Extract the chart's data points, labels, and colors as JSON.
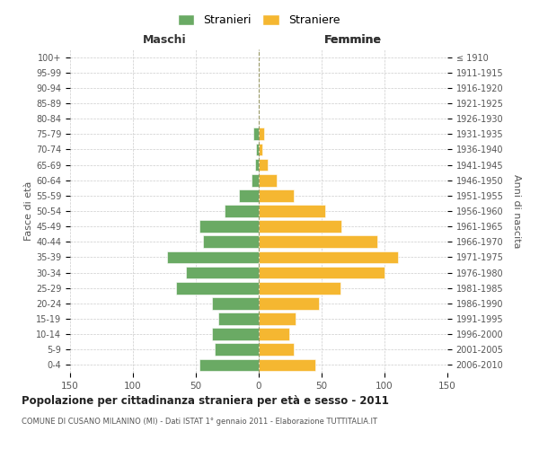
{
  "age_groups": [
    "0-4",
    "5-9",
    "10-14",
    "15-19",
    "20-24",
    "25-29",
    "30-34",
    "35-39",
    "40-44",
    "45-49",
    "50-54",
    "55-59",
    "60-64",
    "65-69",
    "70-74",
    "75-79",
    "80-84",
    "85-89",
    "90-94",
    "95-99",
    "100+"
  ],
  "birth_years": [
    "2006-2010",
    "2001-2005",
    "1996-2000",
    "1991-1995",
    "1986-1990",
    "1981-1985",
    "1976-1980",
    "1971-1975",
    "1966-1970",
    "1961-1965",
    "1956-1960",
    "1951-1955",
    "1946-1950",
    "1941-1945",
    "1936-1940",
    "1931-1935",
    "1926-1930",
    "1921-1925",
    "1916-1920",
    "1911-1915",
    "≤ 1910"
  ],
  "maschi": [
    47,
    35,
    37,
    32,
    37,
    66,
    58,
    73,
    44,
    47,
    27,
    16,
    6,
    3,
    2,
    4,
    0,
    0,
    0,
    0,
    0
  ],
  "femmine": [
    45,
    28,
    24,
    29,
    48,
    65,
    100,
    111,
    94,
    66,
    53,
    28,
    14,
    7,
    3,
    4,
    0,
    0,
    0,
    0,
    0
  ],
  "color_maschi": "#6aaa64",
  "color_femmine": "#f5b731",
  "title": "Popolazione per cittadinanza straniera per età e sesso - 2011",
  "subtitle": "COMUNE DI CUSANO MILANINO (MI) - Dati ISTAT 1° gennaio 2011 - Elaborazione TUTTITALIA.IT",
  "label_maschi": "Stranieri",
  "label_femmine": "Straniere",
  "header_left": "Maschi",
  "header_right": "Femmine",
  "ylabel_left": "Fasce di età",
  "ylabel_right": "Anni di nascita",
  "xlim": 150,
  "background_color": "#ffffff",
  "grid_color": "#cccccc"
}
